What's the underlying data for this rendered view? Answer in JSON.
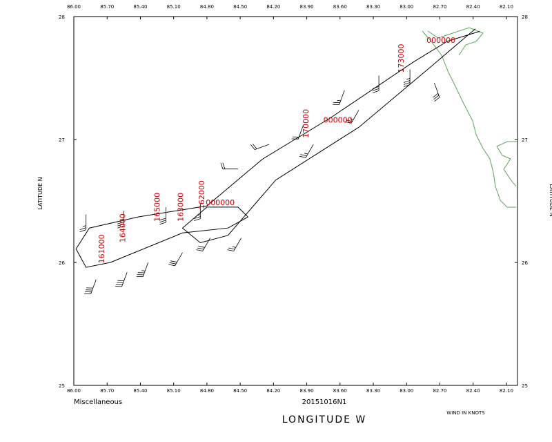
{
  "chart_data": {
    "type": "line",
    "xlabel": "LONGITUDE   W",
    "ylabel": "LATITUDE   N",
    "left_note": "Miscellaneous",
    "center_note": "20151016N1",
    "right_note": "WIND IN KNOTS",
    "xlim": [
      86.0,
      82.0
    ],
    "ylim": [
      25,
      28
    ],
    "xticks": [
      {
        "value": 86.0,
        "label": "86.00"
      },
      {
        "value": 85.7,
        "label": "85.70"
      },
      {
        "value": 85.4,
        "label": "85.40"
      },
      {
        "value": 85.1,
        "label": "85.10"
      },
      {
        "value": 84.8,
        "label": "84.80"
      },
      {
        "value": 84.5,
        "label": "84.50"
      },
      {
        "value": 84.2,
        "label": "84.20"
      },
      {
        "value": 83.9,
        "label": "83.90"
      },
      {
        "value": 83.6,
        "label": "83.60"
      },
      {
        "value": 83.3,
        "label": "83.30"
      },
      {
        "value": 83.0,
        "label": "83.00"
      },
      {
        "value": 82.7,
        "label": "82.70"
      },
      {
        "value": 82.4,
        "label": "82.40"
      },
      {
        "value": 82.1,
        "label": "82.10"
      }
    ],
    "yticks": [
      25,
      26,
      27,
      28
    ],
    "color": "#000000",
    "label_color": "#cc0000",
    "x": [
      82.34,
      82.63,
      82.94,
      83.68,
      84.3,
      84.8,
      85.42,
      85.86,
      85.98,
      85.89,
      85.67,
      85.02,
      84.61,
      84.43,
      84.52,
      84.8,
      85.02,
      84.86,
      84.61,
      84.18,
      83.43,
      82.81,
      82.38
    ],
    "values": [
      27.88,
      27.8,
      27.63,
      27.18,
      26.84,
      26.46,
      26.37,
      26.28,
      26.11,
      25.96,
      26.0,
      26.24,
      26.28,
      26.37,
      26.45,
      26.45,
      26.28,
      26.16,
      26.22,
      26.67,
      27.1,
      27.57,
      27.9
    ],
    "barbs": {
      "x": [
        85.89,
        85.55,
        85.17,
        84.86,
        84.52,
        84.24,
        83.93,
        83.56,
        83.25,
        82.97,
        82.75,
        85.8,
        85.52,
        85.33,
        85.02,
        84.77,
        84.49,
        83.84,
        83.43
      ],
      "y": [
        26.39,
        26.42,
        26.45,
        26.48,
        26.76,
        26.96,
        27.12,
        27.4,
        27.52,
        27.57,
        27.46,
        25.86,
        25.92,
        26.0,
        26.08,
        26.2,
        26.2,
        26.96,
        27.24
      ],
      "direction": [
        180,
        180,
        180,
        180,
        270,
        250,
        200,
        200,
        180,
        180,
        160,
        200,
        200,
        200,
        210,
        210,
        210,
        210,
        210
      ],
      "speed": [
        25,
        30,
        30,
        25,
        20,
        20,
        20,
        25,
        30,
        35,
        30,
        40,
        40,
        35,
        30,
        30,
        25,
        25,
        25
      ]
    },
    "annotations": [
      {
        "text": "161000",
        "x": 85.75,
        "y": 26.11,
        "vertical": true
      },
      {
        "text": "164000",
        "x": 85.56,
        "y": 26.28,
        "vertical": true
      },
      {
        "text": "165000",
        "x": 85.25,
        "y": 26.45,
        "vertical": true
      },
      {
        "text": "163000",
        "x": 85.04,
        "y": 26.45,
        "vertical": true
      },
      {
        "text": "162000",
        "x": 84.85,
        "y": 26.55,
        "vertical": true
      },
      {
        "text": "000000",
        "x": 84.68,
        "y": 26.49,
        "vertical": false
      },
      {
        "text": "170000",
        "x": 83.91,
        "y": 27.13,
        "vertical": true
      },
      {
        "text": "000000",
        "x": 83.62,
        "y": 27.16,
        "vertical": false
      },
      {
        "text": "173000",
        "x": 83.05,
        "y": 27.66,
        "vertical": true
      },
      {
        "text": "000000",
        "x": 82.69,
        "y": 27.81,
        "vertical": false
      }
    ]
  }
}
